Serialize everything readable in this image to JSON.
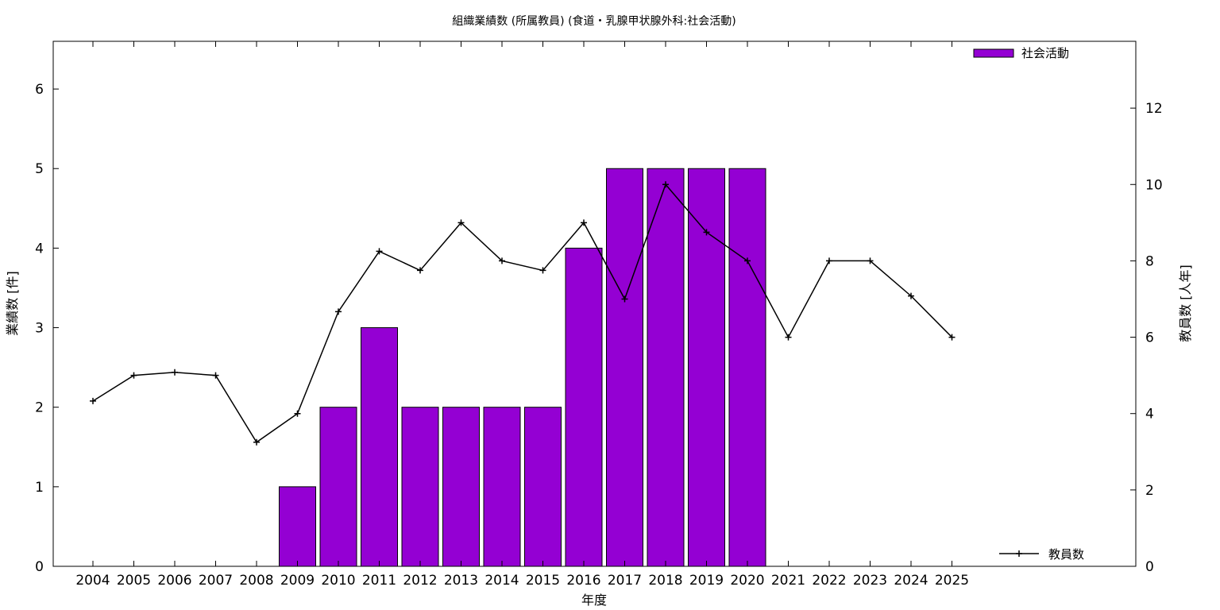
{
  "chart_data": {
    "type": "bar",
    "title": "組織業績数 (所属教員) (食道・乳腺甲状腺外科:社会活動)",
    "xlabel": "年度",
    "ylabel": "業績数 [件]",
    "y2label": "教員数 [人年]",
    "categories": [
      "2004",
      "2005",
      "2006",
      "2007",
      "2008",
      "2009",
      "2010",
      "2011",
      "2012",
      "2013",
      "2014",
      "2015",
      "2016",
      "2017",
      "2018",
      "2019",
      "2020",
      "2021",
      "2022",
      "2023",
      "2024",
      "2025"
    ],
    "ylim": [
      0,
      6.6
    ],
    "y2lim": [
      0,
      13.75
    ],
    "yticks": [
      0,
      1,
      2,
      3,
      4,
      5,
      6
    ],
    "y2ticks": [
      0,
      2,
      4,
      6,
      8,
      10,
      12
    ],
    "grid": false,
    "series": [
      {
        "name": "社会活動",
        "type": "bar",
        "axis": "left",
        "color": "#9400d3",
        "values": [
          0,
          0,
          0,
          0,
          0,
          1,
          2,
          3,
          2,
          2,
          2,
          2,
          4,
          5,
          5,
          5,
          5,
          0,
          0,
          0,
          0,
          0
        ],
        "legend_position": "top-right"
      },
      {
        "name": "教員数",
        "type": "line",
        "axis": "right",
        "color": "#000000",
        "marker": "plus",
        "values": [
          4.33,
          5.0,
          5.08,
          5.0,
          3.25,
          4.0,
          6.67,
          8.25,
          7.75,
          9.0,
          8.0,
          7.75,
          9.0,
          7.0,
          10.0,
          8.75,
          8.0,
          6.0,
          8.0,
          8.0,
          7.08,
          6.0
        ],
        "legend_position": "bottom-right"
      }
    ]
  }
}
